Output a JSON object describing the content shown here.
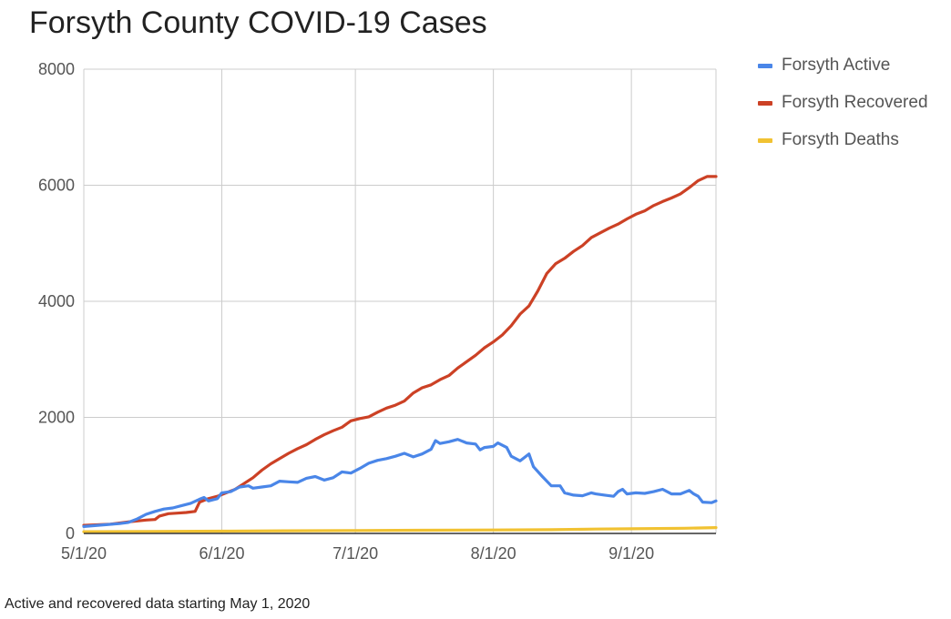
{
  "title": "Forsyth County COVID-19 Cases",
  "caption": "Active and recovered data starting May 1, 2020",
  "chart_data": {
    "type": "line",
    "title": "Forsyth County COVID-19 Cases",
    "xlabel": "",
    "ylabel": "",
    "ylim": [
      0,
      8000
    ],
    "y_ticks": [
      "0",
      "2000",
      "4000",
      "6000",
      "8000"
    ],
    "x_tick_labels": [
      "5/1/20",
      "6/1/20",
      "7/1/20",
      "8/1/20",
      "9/1/20"
    ],
    "x_tick_days": [
      0,
      31,
      61,
      92,
      123
    ],
    "x_range_days": [
      0,
      142
    ],
    "grid": true,
    "legend_position": "right",
    "series": [
      {
        "name": "Forsyth Active",
        "color": "#4a86e8",
        "points": [
          [
            0,
            120
          ],
          [
            5,
            150
          ],
          [
            8,
            170
          ],
          [
            10,
            190
          ],
          [
            12,
            250
          ],
          [
            14,
            330
          ],
          [
            16,
            380
          ],
          [
            18,
            420
          ],
          [
            20,
            440
          ],
          [
            22,
            480
          ],
          [
            24,
            520
          ],
          [
            26,
            590
          ],
          [
            27,
            620
          ],
          [
            28,
            560
          ],
          [
            30,
            600
          ],
          [
            31,
            700
          ],
          [
            33,
            720
          ],
          [
            35,
            800
          ],
          [
            37,
            820
          ],
          [
            38,
            780
          ],
          [
            40,
            800
          ],
          [
            42,
            820
          ],
          [
            44,
            900
          ],
          [
            46,
            890
          ],
          [
            48,
            880
          ],
          [
            50,
            950
          ],
          [
            52,
            980
          ],
          [
            54,
            920
          ],
          [
            56,
            960
          ],
          [
            58,
            1060
          ],
          [
            60,
            1040
          ],
          [
            62,
            1120
          ],
          [
            64,
            1210
          ],
          [
            66,
            1260
          ],
          [
            68,
            1290
          ],
          [
            70,
            1330
          ],
          [
            72,
            1380
          ],
          [
            74,
            1320
          ],
          [
            76,
            1370
          ],
          [
            78,
            1450
          ],
          [
            79,
            1600
          ],
          [
            80,
            1550
          ],
          [
            82,
            1580
          ],
          [
            84,
            1620
          ],
          [
            86,
            1560
          ],
          [
            88,
            1540
          ],
          [
            89,
            1440
          ],
          [
            90,
            1480
          ],
          [
            92,
            1500
          ],
          [
            93,
            1560
          ],
          [
            95,
            1480
          ],
          [
            96,
            1330
          ],
          [
            98,
            1250
          ],
          [
            100,
            1370
          ],
          [
            101,
            1150
          ],
          [
            103,
            980
          ],
          [
            105,
            820
          ],
          [
            107,
            820
          ],
          [
            108,
            700
          ],
          [
            110,
            660
          ],
          [
            112,
            650
          ],
          [
            114,
            700
          ],
          [
            115,
            680
          ],
          [
            117,
            660
          ],
          [
            119,
            640
          ],
          [
            120,
            720
          ],
          [
            121,
            760
          ],
          [
            122,
            680
          ],
          [
            124,
            700
          ],
          [
            126,
            690
          ],
          [
            128,
            720
          ],
          [
            130,
            760
          ],
          [
            132,
            680
          ],
          [
            134,
            680
          ],
          [
            136,
            740
          ],
          [
            137,
            680
          ],
          [
            138,
            640
          ],
          [
            139,
            540
          ],
          [
            141,
            530
          ],
          [
            142,
            560
          ]
        ]
      },
      {
        "name": "Forsyth Recovered",
        "color": "#cc4125",
        "points": [
          [
            0,
            140
          ],
          [
            6,
            160
          ],
          [
            10,
            200
          ],
          [
            14,
            230
          ],
          [
            16,
            240
          ],
          [
            17,
            300
          ],
          [
            19,
            340
          ],
          [
            21,
            350
          ],
          [
            23,
            360
          ],
          [
            25,
            380
          ],
          [
            26,
            540
          ],
          [
            28,
            600
          ],
          [
            30,
            640
          ],
          [
            32,
            700
          ],
          [
            34,
            760
          ],
          [
            36,
            860
          ],
          [
            38,
            960
          ],
          [
            40,
            1090
          ],
          [
            42,
            1200
          ],
          [
            44,
            1290
          ],
          [
            46,
            1380
          ],
          [
            48,
            1460
          ],
          [
            50,
            1530
          ],
          [
            52,
            1620
          ],
          [
            54,
            1700
          ],
          [
            56,
            1770
          ],
          [
            58,
            1830
          ],
          [
            60,
            1940
          ],
          [
            62,
            1980
          ],
          [
            64,
            2010
          ],
          [
            66,
            2090
          ],
          [
            68,
            2160
          ],
          [
            70,
            2210
          ],
          [
            72,
            2280
          ],
          [
            74,
            2420
          ],
          [
            76,
            2510
          ],
          [
            78,
            2560
          ],
          [
            80,
            2650
          ],
          [
            82,
            2720
          ],
          [
            84,
            2850
          ],
          [
            86,
            2960
          ],
          [
            88,
            3070
          ],
          [
            90,
            3200
          ],
          [
            92,
            3300
          ],
          [
            94,
            3420
          ],
          [
            96,
            3580
          ],
          [
            98,
            3780
          ],
          [
            100,
            3920
          ],
          [
            102,
            4180
          ],
          [
            104,
            4480
          ],
          [
            106,
            4650
          ],
          [
            108,
            4740
          ],
          [
            110,
            4860
          ],
          [
            112,
            4960
          ],
          [
            114,
            5100
          ],
          [
            116,
            5180
          ],
          [
            118,
            5260
          ],
          [
            120,
            5330
          ],
          [
            122,
            5420
          ],
          [
            124,
            5500
          ],
          [
            126,
            5560
          ],
          [
            128,
            5650
          ],
          [
            130,
            5720
          ],
          [
            132,
            5780
          ],
          [
            134,
            5850
          ],
          [
            136,
            5960
          ],
          [
            138,
            6080
          ],
          [
            140,
            6150
          ],
          [
            142,
            6150
          ]
        ]
      },
      {
        "name": "Forsyth Deaths",
        "color": "#f1c232",
        "points": [
          [
            0,
            30
          ],
          [
            15,
            35
          ],
          [
            31,
            40
          ],
          [
            45,
            45
          ],
          [
            61,
            50
          ],
          [
            75,
            55
          ],
          [
            92,
            60
          ],
          [
            105,
            65
          ],
          [
            115,
            75
          ],
          [
            123,
            80
          ],
          [
            135,
            90
          ],
          [
            142,
            100
          ]
        ]
      }
    ]
  }
}
